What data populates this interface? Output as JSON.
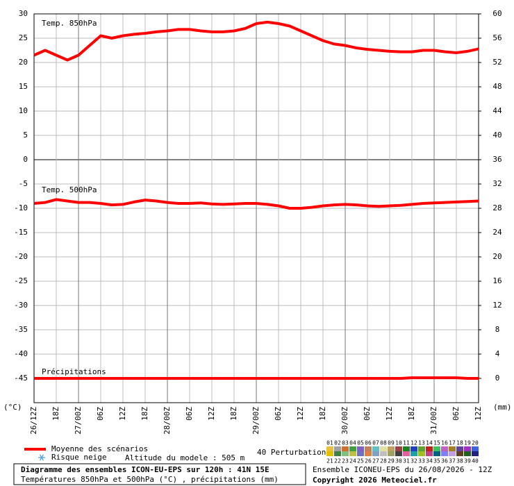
{
  "chart_data": {
    "type": "line",
    "y_unit_label": "(°C)",
    "y2_unit_label": "(mm)",
    "x": [
      0,
      3,
      6,
      9,
      12,
      15,
      18,
      21,
      24,
      27,
      30,
      33,
      36,
      39,
      42,
      45,
      48,
      51,
      54,
      57,
      60,
      63,
      66,
      69,
      72,
      75,
      78,
      81,
      84,
      87,
      90,
      93,
      96,
      99,
      102,
      105,
      108,
      111,
      114,
      117,
      120
    ],
    "xlim": [
      0,
      120
    ],
    "xticks": [
      {
        "value": 0,
        "label": "26/12Z"
      },
      {
        "value": 6,
        "label": "18Z"
      },
      {
        "value": 12,
        "label": "27/00Z"
      },
      {
        "value": 18,
        "label": "06Z"
      },
      {
        "value": 24,
        "label": "12Z"
      },
      {
        "value": 30,
        "label": "18Z"
      },
      {
        "value": 36,
        "label": "28/00Z"
      },
      {
        "value": 42,
        "label": "06Z"
      },
      {
        "value": 48,
        "label": "12Z"
      },
      {
        "value": 54,
        "label": "18Z"
      },
      {
        "value": 60,
        "label": "29/00Z"
      },
      {
        "value": 66,
        "label": "06Z"
      },
      {
        "value": 72,
        "label": "12Z"
      },
      {
        "value": 78,
        "label": "18Z"
      },
      {
        "value": 84,
        "label": "30/00Z"
      },
      {
        "value": 90,
        "label": "06Z"
      },
      {
        "value": 96,
        "label": "12Z"
      },
      {
        "value": 102,
        "label": "18Z"
      },
      {
        "value": 108,
        "label": "31/00Z"
      },
      {
        "value": 114,
        "label": "06Z"
      },
      {
        "value": 120,
        "label": "12Z"
      }
    ],
    "ylim": [
      -50,
      30
    ],
    "yticks": [
      30,
      25,
      20,
      15,
      10,
      5,
      0,
      -5,
      -10,
      -15,
      -20,
      -25,
      -30,
      -35,
      -40,
      -45
    ],
    "y2lim": [
      -4,
      60
    ],
    "y2ticks": [
      60,
      56,
      52,
      48,
      44,
      40,
      36,
      32,
      28,
      24,
      20,
      16,
      12,
      8,
      4,
      0
    ],
    "grid": true,
    "series": [
      {
        "name": "Temp. 850hPa",
        "color": "#ff0000",
        "values": [
          21.5,
          22.5,
          21.5,
          20.5,
          21.5,
          23.5,
          25.5,
          25,
          25.5,
          25.8,
          26,
          26.3,
          26.5,
          26.8,
          26.8,
          26.5,
          26.3,
          26.3,
          26.5,
          27,
          28,
          28.3,
          28,
          27.5,
          26.5,
          25.5,
          24.5,
          23.8,
          23.5,
          23,
          22.7,
          22.5,
          22.3,
          22.2,
          22.2,
          22.5,
          22.5,
          22.2,
          22,
          22.3,
          22.8
        ]
      },
      {
        "name": "Temp. 500hPa",
        "color": "#ff0000",
        "values": [
          -9,
          -8.8,
          -8.2,
          -8.5,
          -8.8,
          -8.8,
          -9,
          -9.3,
          -9.2,
          -8.7,
          -8.3,
          -8.5,
          -8.8,
          -9,
          -9,
          -8.9,
          -9.1,
          -9.2,
          -9.1,
          -9,
          -9,
          -9.2,
          -9.5,
          -10,
          -10,
          -9.8,
          -9.5,
          -9.3,
          -9.2,
          -9.3,
          -9.5,
          -9.6,
          -9.5,
          -9.4,
          -9.2,
          -9,
          -8.9,
          -8.8,
          -8.7,
          -8.6,
          -8.5
        ]
      },
      {
        "name": "Précipitations",
        "color": "#ff0000",
        "axis": "y2",
        "values": [
          0,
          0,
          0,
          0,
          0,
          0,
          0,
          0,
          0,
          0,
          0,
          0,
          0,
          0,
          0,
          0,
          0,
          0,
          0,
          0,
          0,
          0,
          0,
          0,
          0,
          0,
          0,
          0,
          0,
          0,
          0,
          0,
          0,
          0,
          0.1,
          0.1,
          0.1,
          0.1,
          0.1,
          0,
          0
        ]
      }
    ],
    "legend": {
      "mean_label": "Moyenne des scénarios",
      "snow_label": "Risque neige",
      "altitude": "Altitude du modele : 505 m",
      "perturbations_label": "40 Perturbations",
      "members": [
        {
          "name": "01",
          "color": "#e8c040"
        },
        {
          "name": "02",
          "color": "#a0a0a0"
        },
        {
          "name": "03",
          "color": "#d07030"
        },
        {
          "name": "04",
          "color": "#40a040"
        },
        {
          "name": "05",
          "color": "#8060c0"
        },
        {
          "name": "06",
          "color": "#c08060"
        },
        {
          "name": "07",
          "color": "#60c0c0"
        },
        {
          "name": "08",
          "color": "#e0e0a0"
        },
        {
          "name": "09",
          "color": "#c0a060"
        },
        {
          "name": "10",
          "color": "#a04040"
        },
        {
          "name": "11",
          "color": "#208020"
        },
        {
          "name": "12",
          "color": "#2040c0"
        },
        {
          "name": "13",
          "color": "#60a030"
        },
        {
          "name": "14",
          "color": "#c02020"
        },
        {
          "name": "15",
          "color": "#40c060"
        },
        {
          "name": "16",
          "color": "#c060c0"
        },
        {
          "name": "17",
          "color": "#a08020"
        },
        {
          "name": "18",
          "color": "#6040a0"
        },
        {
          "name": "19",
          "color": "#a030c0"
        },
        {
          "name": "20",
          "color": "#4060e0"
        },
        {
          "name": "21",
          "color": "#e0c000"
        },
        {
          "name": "22",
          "color": "#408040"
        },
        {
          "name": "23",
          "color": "#80c080"
        },
        {
          "name": "24",
          "color": "#c0c040"
        },
        {
          "name": "25",
          "color": "#7070c0"
        },
        {
          "name": "26",
          "color": "#e08040"
        },
        {
          "name": "27",
          "color": "#80a0c0"
        },
        {
          "name": "28",
          "color": "#c0c0c0"
        },
        {
          "name": "29",
          "color": "#a0a060"
        },
        {
          "name": "30",
          "color": "#404040"
        },
        {
          "name": "31",
          "color": "#e060a0"
        },
        {
          "name": "32",
          "color": "#20a0a0"
        },
        {
          "name": "33",
          "color": "#a0c020"
        },
        {
          "name": "34",
          "color": "#c04080"
        },
        {
          "name": "35",
          "color": "#006080"
        },
        {
          "name": "36",
          "color": "#8080ff"
        },
        {
          "name": "37",
          "color": "#c0a0e0"
        },
        {
          "name": "38",
          "color": "#604020"
        },
        {
          "name": "39",
          "color": "#206020"
        },
        {
          "name": "40",
          "color": "#202080"
        }
      ]
    },
    "footer": {
      "title": "Diagramme des ensembles ICON-EU-EPS sur 120h : 41N 15E",
      "subtitle": "Températures 850hPa et 500hPa (°C) , précipitations (mm)",
      "run": "Ensemble ICONEU-EPS du 26/08/2026 - 12Z",
      "copyright": "Copyright 2026 Meteociel.fr"
    }
  }
}
